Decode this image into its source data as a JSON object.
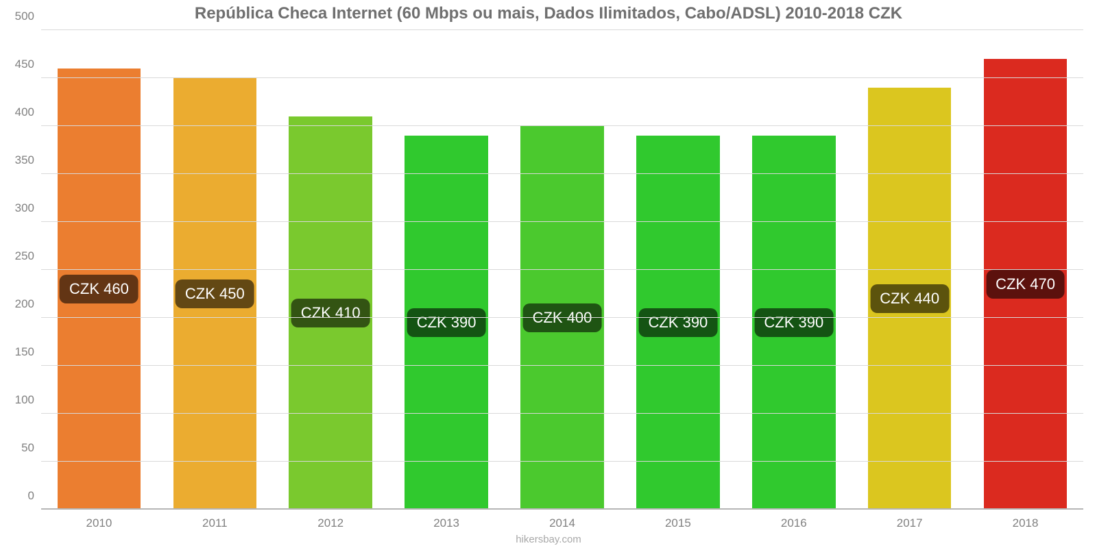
{
  "chart": {
    "type": "bar",
    "title": "República Checa Internet (60 Mbps ou mais, Dados Ilimitados, Cabo/ADSL) 2010-2018 CZK",
    "title_color": "#6f6f6f",
    "title_fontsize": 24,
    "title_fontweight": "700",
    "background_color": "#ffffff",
    "plot_background_color": "#ffffff",
    "ylim": [
      0,
      500
    ],
    "ytick_step": 50,
    "ytick_labels": [
      "0",
      "50",
      "100",
      "150",
      "200",
      "250",
      "300",
      "350",
      "400",
      "450",
      "500"
    ],
    "grid_color": "#d9d9d9",
    "baseline_color": "#b5b5b5",
    "axis_label_color": "#808080",
    "axis_label_fontsize": 17,
    "bar_width_pct": 72,
    "categories": [
      "2010",
      "2011",
      "2012",
      "2013",
      "2014",
      "2015",
      "2016",
      "2017",
      "2018"
    ],
    "values": [
      460,
      450,
      410,
      390,
      400,
      390,
      390,
      440,
      470
    ],
    "bar_colors": [
      "#eb7e30",
      "#ebac30",
      "#7ac92e",
      "#30c92e",
      "#4bc92e",
      "#30c92e",
      "#30c92e",
      "#dbc61f",
      "#db2a1f"
    ],
    "pill_labels": [
      "CZK 460",
      "CZK 450",
      "CZK 410",
      "CZK 390",
      "CZK 400",
      "CZK 390",
      "CZK 390",
      "CZK 440",
      "CZK 470"
    ],
    "pill_fontsize": 22,
    "pill_text_color": "#ffffff",
    "pill_fill_opacity": 0.58,
    "pill_fill_base": "#000000",
    "attribution": "hikersbay.com",
    "attribution_color": "#a8a8a8",
    "attribution_fontsize": 15
  }
}
